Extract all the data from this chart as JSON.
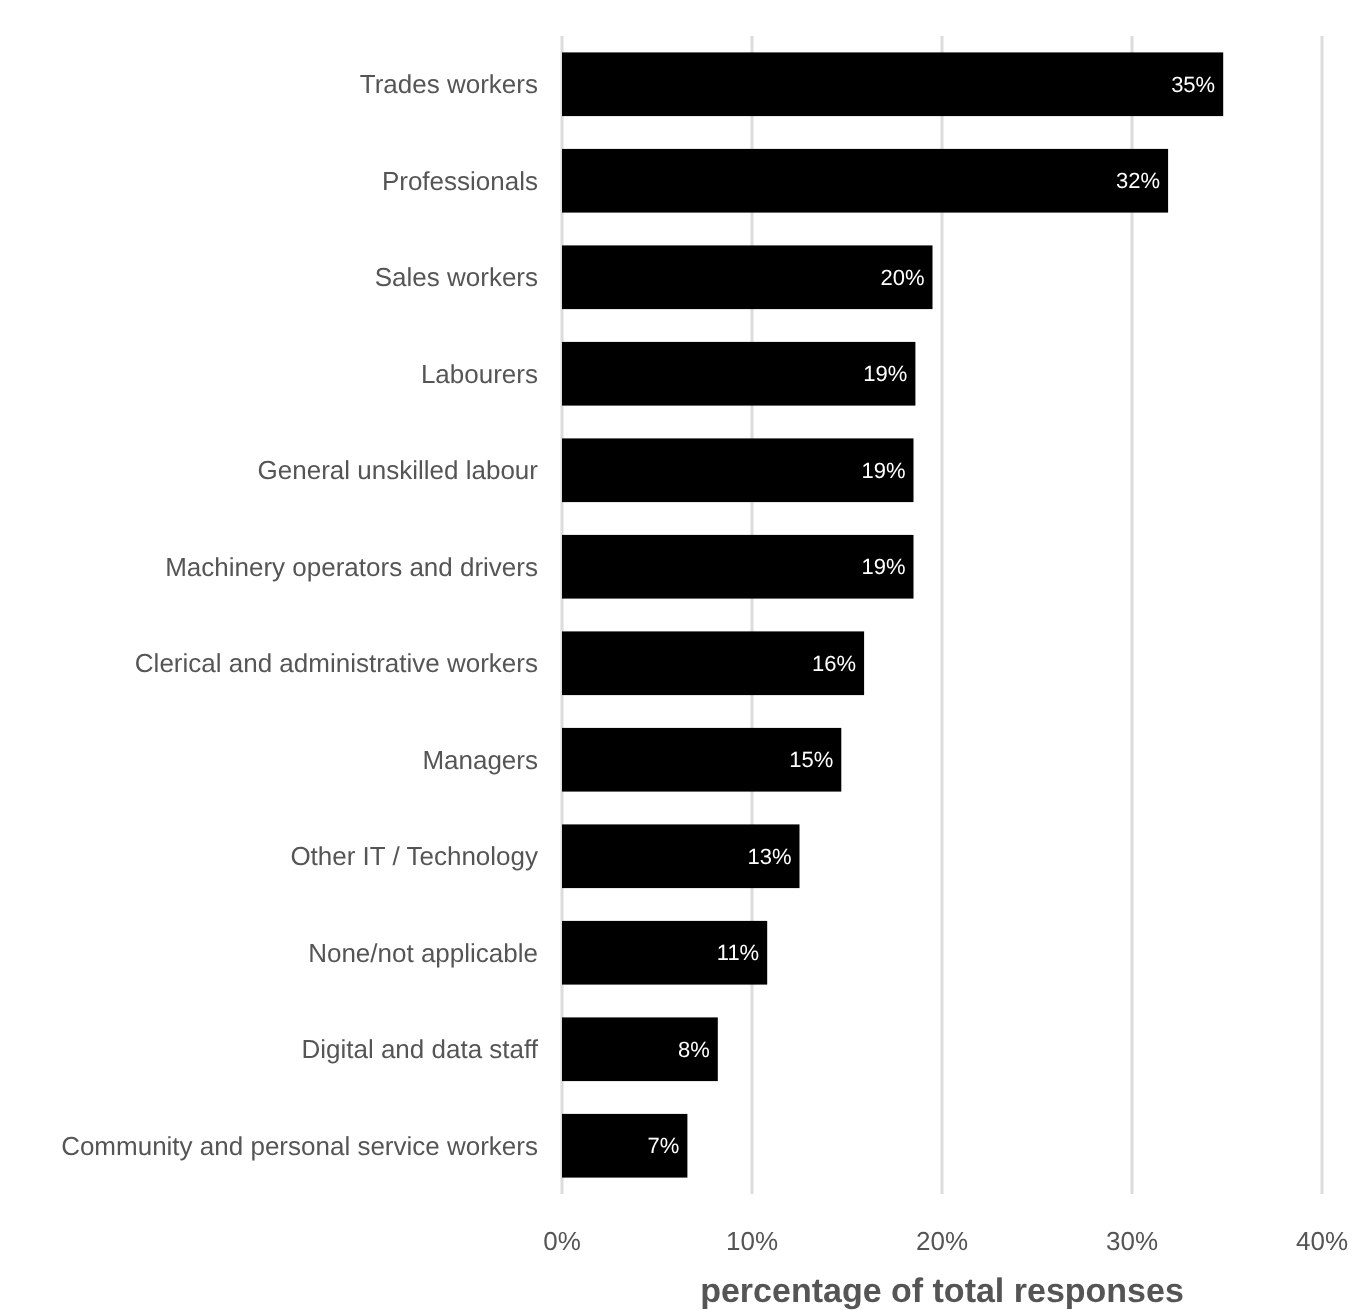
{
  "chart_data": {
    "type": "bar",
    "orientation": "horizontal",
    "xlabel": "percentage of total responses",
    "categories": [
      "Trades workers",
      "Professionals",
      "Sales workers",
      "Labourers",
      "General unskilled labour",
      "Machinery operators and drivers",
      "Clerical and administrative workers",
      "Managers",
      "Other IT / Technology",
      "None/not applicable",
      "Digital and data staff",
      "Community and personal service workers"
    ],
    "values": [
      34.8,
      31.9,
      19.5,
      18.6,
      18.5,
      18.5,
      15.9,
      14.7,
      12.5,
      10.8,
      8.2,
      6.6
    ],
    "value_labels": [
      "35%",
      "32%",
      "20%",
      "19%",
      "19%",
      "19%",
      "16%",
      "15%",
      "13%",
      "11%",
      "8%",
      "7%"
    ],
    "color": "#000000",
    "xlim": [
      0,
      40
    ],
    "xticks": [
      {
        "value": 0,
        "label": "0%"
      },
      {
        "value": 10,
        "label": "10%"
      },
      {
        "value": 20,
        "label": "20%"
      },
      {
        "value": 30,
        "label": "30%"
      },
      {
        "value": 40,
        "label": "40%"
      }
    ],
    "grid": "x"
  }
}
